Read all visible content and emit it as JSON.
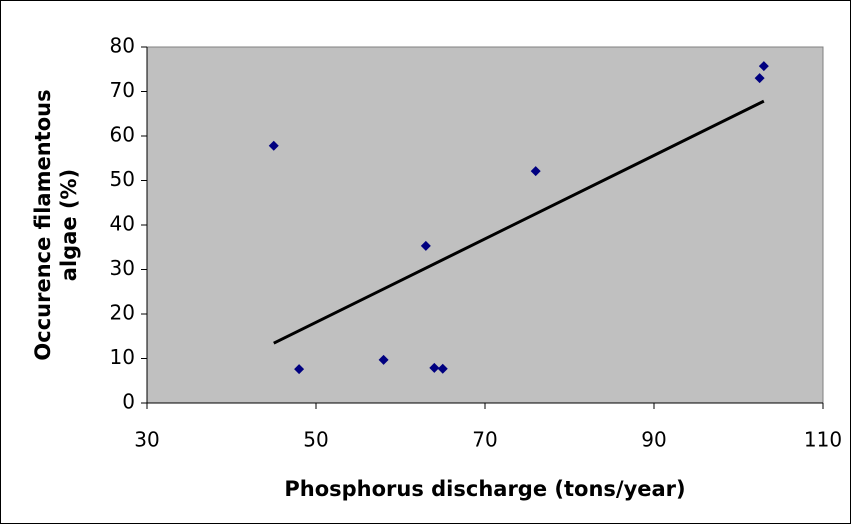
{
  "chart_data": {
    "type": "scatter",
    "xlabel": "Phosphorus discharge (tons/year)",
    "ylabel_lines": [
      "Occurence filamentous",
      "algae (%)"
    ],
    "series": [
      {
        "color": "#000080",
        "x": [
          45,
          48,
          58,
          63,
          64,
          65,
          76,
          102.5,
          103
        ],
        "values": [
          57.8,
          7.6,
          9.7,
          35.3,
          7.9,
          7.7,
          52.1,
          73,
          75.7
        ]
      }
    ],
    "trendline": "linear",
    "xlim": [
      30,
      110
    ],
    "xticks": [
      30,
      50,
      70,
      90,
      110
    ],
    "ylim": [
      0,
      80
    ],
    "yticks": [
      0,
      10,
      20,
      30,
      40,
      50,
      60,
      70,
      80
    ],
    "plot_color": "#c0c0c0"
  }
}
